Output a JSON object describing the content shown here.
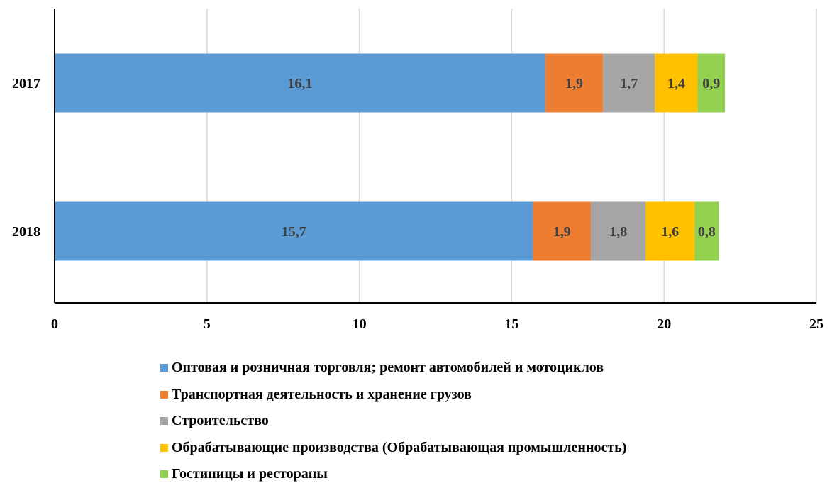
{
  "chart_data": {
    "type": "bar",
    "orientation": "horizontal",
    "stacked": true,
    "title": "",
    "xlabel": "",
    "ylabel": "",
    "categories": [
      "2017",
      "2018"
    ],
    "xlim": [
      0,
      25
    ],
    "x_ticks": [
      "0",
      "5",
      "10",
      "15",
      "20",
      "25"
    ],
    "grid": true,
    "legend_position": "bottom",
    "series": [
      {
        "name": "Оптовая и розничная торговля; ремонт автомобилей и мотоциклов",
        "values": [
          16.1,
          15.7
        ],
        "labels": [
          "16,1",
          "15,7"
        ],
        "color": "#5B9BD5"
      },
      {
        "name": "Транспортная деятельность и хранение грузов",
        "values": [
          1.9,
          1.9
        ],
        "labels": [
          "1,9",
          "1,9"
        ],
        "color": "#ED7D31"
      },
      {
        "name": "Строительство",
        "values": [
          1.7,
          1.8
        ],
        "labels": [
          "1,7",
          "1,8"
        ],
        "color": "#A5A5A5"
      },
      {
        "name": "Обрабатывающие производства (Обрабатывающая промышленность)",
        "values": [
          1.4,
          1.6
        ],
        "labels": [
          "1,4",
          "1,6"
        ],
        "color": "#FFC000"
      },
      {
        "name": "Гостиницы и рестораны",
        "values": [
          0.9,
          0.8
        ],
        "labels": [
          "0,9",
          "0,8"
        ],
        "color": "#92D050"
      }
    ]
  }
}
